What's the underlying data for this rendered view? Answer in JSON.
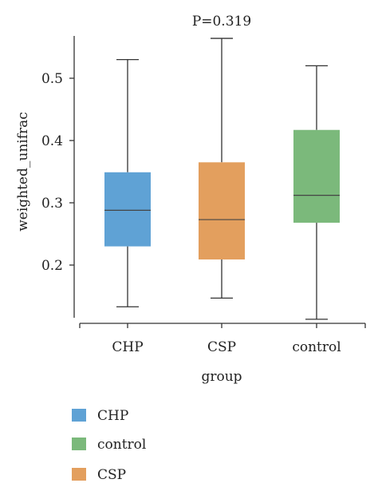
{
  "chart_data": {
    "type": "box",
    "annotation": "P=0.319",
    "xlabel": "group",
    "ylabel": "weighted_unifrac",
    "ylim": [
      0.1,
      0.56
    ],
    "yticks": [
      "0.2",
      "0.3",
      "0.4",
      "0.5"
    ],
    "categories": [
      "CHP",
      "CSP",
      "control"
    ],
    "boxes": [
      {
        "name": "CHP",
        "min": 0.133,
        "q1": 0.23,
        "median": 0.288,
        "q3": 0.349,
        "max": 0.53,
        "color": "#5fa2d5"
      },
      {
        "name": "CSP",
        "min": 0.147,
        "q1": 0.209,
        "median": 0.273,
        "q3": 0.365,
        "max": 0.564,
        "color": "#e39f5e"
      },
      {
        "name": "control",
        "min": 0.113,
        "q1": 0.268,
        "median": 0.312,
        "q3": 0.417,
        "max": 0.52,
        "color": "#7bb97b"
      }
    ],
    "legend": {
      "placement": "bottom-left",
      "entries": [
        {
          "label": "CHP",
          "color": "#5fa2d5"
        },
        {
          "label": "control",
          "color": "#7bb97b"
        },
        {
          "label": "CSP",
          "color": "#e39f5e"
        }
      ]
    }
  }
}
